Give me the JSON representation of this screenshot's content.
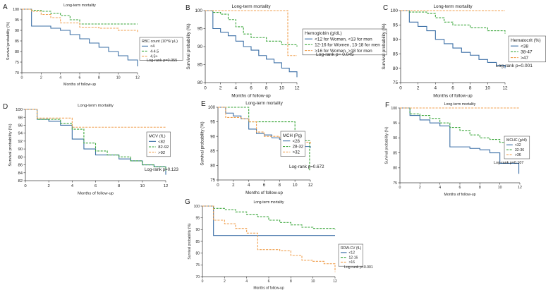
{
  "figure": {
    "width": 784,
    "height": 418
  },
  "colors": {
    "blue": "#3b6fa6",
    "green": "#3aa63a",
    "orange": "#f0a050",
    "axis": "#444444",
    "text": "#222222"
  },
  "chart_data": [
    {
      "panel": "A",
      "type": "line",
      "title": "Long-term mortality",
      "xlabel": "Months of follow-up",
      "ylabel": "Survival probability (%)",
      "xlim": [
        0,
        12
      ],
      "ylim": [
        70,
        100
      ],
      "xticks": [
        0,
        2,
        4,
        6,
        8,
        10,
        12
      ],
      "yticks": [
        70,
        75,
        80,
        85,
        90,
        95,
        100
      ],
      "legend_title": "RBC count (10^6/ μL)",
      "legend_position": "right",
      "annotation": "Log-rank p=0.055",
      "series": [
        {
          "name": "<4",
          "color": "#3b6fa6",
          "dash": false,
          "x": [
            0,
            1,
            1,
            3,
            4,
            5,
            6,
            7,
            8,
            9,
            10,
            11,
            12
          ],
          "y": [
            100,
            100,
            92,
            91,
            90,
            88,
            86,
            84,
            82,
            80,
            78,
            76,
            73
          ]
        },
        {
          "name": "4-4.5",
          "color": "#3aa63a",
          "dash": true,
          "x": [
            0,
            1,
            2,
            3,
            4,
            5,
            6,
            12
          ],
          "y": [
            100,
            99.5,
            99,
            98,
            97,
            95,
            93,
            93
          ]
        },
        {
          "name": "4.5>",
          "color": "#f0a050",
          "dash": true,
          "x": [
            0,
            1,
            2,
            3,
            4,
            6,
            8,
            10,
            12
          ],
          "y": [
            100,
            99,
            97.5,
            96,
            93.5,
            91.5,
            91,
            90,
            89
          ]
        }
      ]
    },
    {
      "panel": "B",
      "type": "line",
      "title": "Long-term mortality",
      "xlabel": "Months of follow-up",
      "ylabel": "Survival probability (%)",
      "xlim": [
        0,
        12
      ],
      "ylim": [
        80,
        100
      ],
      "xticks": [
        0,
        2,
        4,
        6,
        8,
        10,
        12
      ],
      "yticks": [
        80,
        85,
        90,
        95,
        100
      ],
      "legend_title": "Hemoglobin (g/dL)",
      "legend_position": "right",
      "annotation": "Log-rank p= 0.045",
      "series": [
        {
          "name": "<12 for Women, <13 for men",
          "color": "#3b6fa6",
          "dash": false,
          "x": [
            0,
            1,
            2,
            3,
            4,
            5,
            6,
            7,
            8,
            9,
            10,
            11,
            12
          ],
          "y": [
            100,
            95,
            94,
            93,
            91.5,
            90,
            89,
            87.5,
            86.5,
            85.5,
            84,
            83,
            81.5
          ]
        },
        {
          "name": "12-16 for Women, 13-18 for men",
          "color": "#3aa63a",
          "dash": true,
          "x": [
            0,
            1,
            2,
            3,
            4,
            5,
            6,
            8,
            10,
            12
          ],
          "y": [
            100,
            99.5,
            99,
            97.5,
            95.5,
            93.5,
            92.5,
            91.5,
            90.5,
            90
          ]
        },
        {
          "name": ">16 for Women, >18 for men",
          "color": "#f0a050",
          "dash": true,
          "x": [
            0,
            10.8,
            10.8,
            12
          ],
          "y": [
            100,
            100,
            87.5,
            87.5
          ]
        }
      ]
    },
    {
      "panel": "C",
      "type": "line",
      "title": "Long-term mortality",
      "xlabel": "Months of follow-up",
      "ylabel": "Survival probability (%)",
      "xlim": [
        0,
        12
      ],
      "ylim": [
        75,
        100
      ],
      "xticks": [
        0,
        2,
        4,
        6,
        8,
        10,
        12
      ],
      "yticks": [
        75,
        80,
        85,
        90,
        95,
        100
      ],
      "legend_title": "Hematocrit (%)",
      "legend_position": "right",
      "annotation": "Log-rank p=0.001",
      "series": [
        {
          "name": "<38",
          "color": "#3b6fa6",
          "dash": false,
          "x": [
            0,
            1,
            2,
            3,
            4,
            5,
            6,
            7,
            8,
            9,
            10,
            11,
            12
          ],
          "y": [
            100,
            96,
            94.5,
            93,
            90,
            88.5,
            87,
            85.5,
            84.5,
            83,
            82,
            81,
            80
          ]
        },
        {
          "name": "38-47",
          "color": "#3aa63a",
          "dash": true,
          "x": [
            0,
            1,
            3,
            4,
            5,
            6,
            8,
            10,
            12
          ],
          "y": [
            100,
            99.5,
            99,
            97.5,
            96,
            95,
            94,
            93,
            92
          ]
        },
        {
          "name": ">47",
          "color": "#f0a050",
          "dash": true,
          "x": [
            0,
            12
          ],
          "y": [
            100,
            100
          ]
        }
      ]
    },
    {
      "panel": "D",
      "type": "line",
      "title": "Long-term mortality",
      "xlabel": "Months of follow-up",
      "ylabel": "Survival probability (%)",
      "xlim": [
        0,
        12
      ],
      "ylim": [
        82,
        100
      ],
      "xticks": [
        0,
        2,
        4,
        6,
        8,
        10,
        12
      ],
      "yticks": [
        82,
        84,
        86,
        88,
        90,
        92,
        94,
        96,
        98,
        100
      ],
      "legend_title": "MCV (fL)",
      "legend_position": "right",
      "annotation": "Log-rank p=0.123",
      "series": [
        {
          "name": "<82",
          "color": "#3b6fa6",
          "dash": false,
          "x": [
            0,
            1,
            2,
            3,
            4,
            5,
            6,
            7,
            8,
            9,
            10,
            11,
            12
          ],
          "y": [
            100,
            97.5,
            97,
            96,
            92.5,
            90,
            88.5,
            88.5,
            87.5,
            87,
            86,
            85.5,
            83.5
          ]
        },
        {
          "name": "82-92",
          "color": "#3aa63a",
          "dash": true,
          "x": [
            0,
            1,
            2,
            3,
            4,
            5,
            6,
            7,
            8,
            9,
            10,
            11,
            12
          ],
          "y": [
            100,
            97.5,
            97.5,
            96.5,
            95,
            91.5,
            89.5,
            88.5,
            88,
            87,
            86,
            85.5,
            84.5
          ]
        },
        {
          "name": ">92",
          "color": "#f0a050",
          "dash": true,
          "x": [
            0,
            1,
            1,
            4,
            4,
            12
          ],
          "y": [
            100,
            100,
            97.8,
            97.8,
            95.5,
            95.5
          ]
        }
      ]
    },
    {
      "panel": "E",
      "type": "line",
      "title": "Long-term mortality",
      "xlabel": "Months of follow-up",
      "ylabel": "Survival probability (%)",
      "xlim": [
        0,
        12
      ],
      "ylim": [
        75,
        100
      ],
      "xticks": [
        0,
        2,
        4,
        6,
        8,
        10,
        12
      ],
      "yticks": [
        75,
        80,
        85,
        90,
        95,
        100
      ],
      "legend_title": "MCH (Pg)",
      "legend_position": "right",
      "annotation": "Log-rank p=0.672",
      "series": [
        {
          "name": "<28",
          "color": "#3b6fa6",
          "dash": false,
          "x": [
            0,
            1,
            2,
            3,
            4,
            5,
            6,
            7,
            8,
            9,
            10,
            11,
            12
          ],
          "y": [
            100,
            98,
            97,
            96,
            92.5,
            91,
            90.5,
            89.5,
            89,
            88,
            87,
            86.5,
            86
          ]
        },
        {
          "name": "28-32",
          "color": "#3aa63a",
          "dash": true,
          "x": [
            0,
            4,
            4,
            10,
            10,
            11.9,
            11.9
          ],
          "y": [
            100,
            100,
            95,
            95,
            88.5,
            88.5,
            78
          ]
        },
        {
          "name": ">32",
          "color": "#f0a050",
          "dash": true,
          "x": [
            0,
            1,
            3,
            4,
            5,
            6,
            8,
            10,
            12
          ],
          "y": [
            100,
            96.5,
            96,
            95,
            91.5,
            90,
            89.5,
            88,
            87.5
          ]
        }
      ]
    },
    {
      "panel": "F",
      "type": "line",
      "title": "Long-term mortality",
      "xlabel": "Months of follow-up",
      "ylabel": "Survival probability (%)",
      "xlim": [
        0,
        12
      ],
      "ylim": [
        75,
        100
      ],
      "xticks": [
        0,
        2,
        4,
        6,
        8,
        10,
        12
      ],
      "yticks": [
        75,
        80,
        85,
        90,
        95,
        100
      ],
      "legend_title": "MCHC (g/dl)",
      "legend_position": "right",
      "annotation": "Log-rank p=0.107",
      "series": [
        {
          "name": "<32",
          "color": "#3b6fa6",
          "dash": false,
          "x": [
            0,
            1,
            2,
            3,
            4,
            5,
            6,
            7,
            8,
            9,
            10,
            11.9,
            11.9
          ],
          "y": [
            100,
            97.5,
            96,
            95,
            94,
            87,
            87,
            86.5,
            86,
            85,
            81.5,
            81.5,
            78
          ]
        },
        {
          "name": "32-36",
          "color": "#3aa63a",
          "dash": true,
          "x": [
            0,
            1,
            2,
            3,
            4,
            5,
            6,
            7,
            8,
            9,
            10,
            11,
            12
          ],
          "y": [
            100,
            98,
            97.5,
            96.5,
            95,
            93.5,
            92.5,
            91,
            90,
            89.5,
            88.5,
            88,
            87.5
          ]
        },
        {
          "name": ">36",
          "color": "#f0a050",
          "dash": true,
          "x": [
            0,
            12
          ],
          "y": [
            100,
            100
          ]
        }
      ]
    },
    {
      "panel": "G",
      "type": "line",
      "title": "Long-term mortality",
      "xlabel": "Months of follow-up",
      "ylabel": "Survival probability (%)",
      "xlim": [
        0,
        12
      ],
      "ylim": [
        70,
        100
      ],
      "xticks": [
        0,
        2,
        4,
        6,
        8,
        10,
        12
      ],
      "yticks": [
        70,
        75,
        80,
        85,
        90,
        95,
        100
      ],
      "legend_title": "RDW-CV (fL)",
      "legend_position": "right",
      "annotation": "Log-rank p<0.001",
      "series": [
        {
          "name": "<12",
          "color": "#3b6fa6",
          "dash": false,
          "x": [
            0,
            1,
            1,
            12
          ],
          "y": [
            100,
            100,
            87.5,
            87.5
          ]
        },
        {
          "name": "12-16",
          "color": "#3aa63a",
          "dash": true,
          "x": [
            0,
            1,
            2,
            3,
            4,
            5,
            6,
            7,
            8,
            9,
            10,
            11,
            12
          ],
          "y": [
            100,
            99,
            98.5,
            97.5,
            96.5,
            95.5,
            94,
            93,
            92,
            91,
            90.5,
            90.5,
            90
          ]
        },
        {
          "name": ">16",
          "color": "#f0a050",
          "dash": true,
          "x": [
            0,
            1,
            2,
            3,
            4,
            5,
            6,
            7,
            8,
            9,
            10,
            11,
            12
          ],
          "y": [
            100,
            94,
            92.5,
            90.5,
            88.5,
            81.5,
            81.5,
            81,
            79,
            77,
            76.5,
            75.5,
            72
          ]
        }
      ]
    }
  ]
}
